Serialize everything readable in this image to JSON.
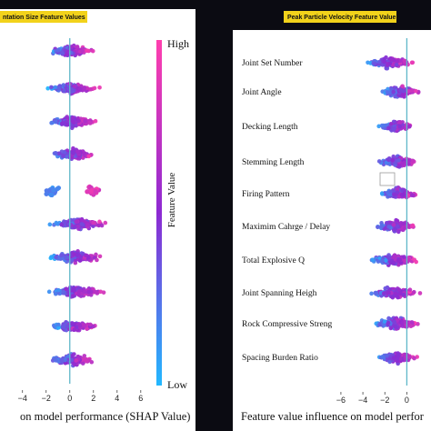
{
  "colors": {
    "background": "#0b0b12",
    "panel": "#ffffff",
    "title_badge": "#f2d21b",
    "zero_line": "#5fb7c9",
    "low": "#22b8ff",
    "mid": "#8d2ad2",
    "high": "#ff3fae"
  },
  "colorbar": {
    "high_label": "High",
    "low_label": "Low",
    "title": "Feature Value"
  },
  "chart_data": [
    {
      "type": "scatter",
      "subtype": "shap-beeswarm",
      "title": "Fragmentation Size Feature Values",
      "title_visible": "ntation Size Feature Values",
      "xlabel_visible": "on model performance (SHAP Value)",
      "xticks": [
        -4,
        -2,
        0,
        2,
        4,
        6
      ],
      "xlim": [
        -5.9,
        6.4
      ],
      "feature_names": [],
      "features": [
        {
          "center": 0.1,
          "spread": 2.2,
          "mode": "mixed"
        },
        {
          "center": 0.3,
          "spread": 2.7,
          "mode": "mixed"
        },
        {
          "center": 0.2,
          "spread": 2.6,
          "mode": "mixed"
        },
        {
          "center": 0.4,
          "spread": 2.4,
          "mode": "mixed"
        },
        {
          "center": 0.0,
          "spread": 0.0,
          "mode": "split"
        },
        {
          "center": 0.8,
          "spread": 3.2,
          "mode": "mixed"
        },
        {
          "center": 0.5,
          "spread": 3.0,
          "mode": "mixed"
        },
        {
          "center": 0.6,
          "spread": 3.1,
          "mode": "mixed"
        },
        {
          "center": 0.3,
          "spread": 2.5,
          "mode": "mixed"
        },
        {
          "center": 0.2,
          "spread": 2.3,
          "mode": "mixed"
        }
      ]
    },
    {
      "type": "scatter",
      "subtype": "shap-beeswarm",
      "title": "Peak Particle Velocity Feature Values",
      "xlabel_visible": "Feature value influence on model perfor",
      "xticks": [
        -6,
        -4,
        -2,
        0
      ],
      "xlim": [
        -7.4,
        2.2
      ],
      "feature_names": [
        "Joint Set Number",
        "Joint Angle",
        "Decking Length",
        "Stemming Length",
        "Firing Pattern",
        "Maximim Cahrge / Delay",
        "Total Explosive Q",
        "Joint Spanning Heigh",
        "Rock Compressive Streng",
        "Spacing Burden Ratio"
      ],
      "features": [
        {
          "center": -1.5,
          "spread": 2.8,
          "mode": "mixed"
        },
        {
          "center": -0.6,
          "spread": 2.3,
          "mode": "mixed"
        },
        {
          "center": -0.9,
          "spread": 2.1,
          "mode": "mixed"
        },
        {
          "center": -0.8,
          "spread": 2.4,
          "mode": "mixed"
        },
        {
          "center": -0.7,
          "spread": 2.2,
          "mode": "mixed"
        },
        {
          "center": -0.9,
          "spread": 2.6,
          "mode": "mixed"
        },
        {
          "center": -1.1,
          "spread": 2.9,
          "mode": "mixed"
        },
        {
          "center": -1.2,
          "spread": 2.8,
          "mode": "mixed"
        },
        {
          "center": -1.0,
          "spread": 2.6,
          "mode": "mixed"
        },
        {
          "center": -0.9,
          "spread": 2.3,
          "mode": "mixed"
        }
      ]
    }
  ]
}
